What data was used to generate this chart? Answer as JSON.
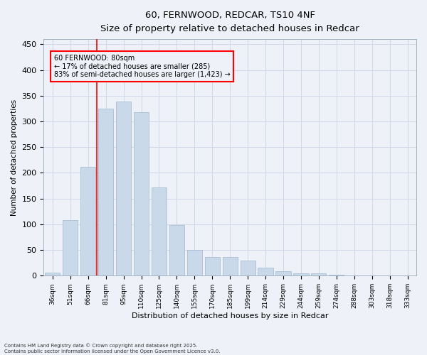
{
  "title_line1": "60, FERNWOOD, REDCAR, TS10 4NF",
  "title_line2": "Size of property relative to detached houses in Redcar",
  "xlabel": "Distribution of detached houses by size in Redcar",
  "ylabel": "Number of detached properties",
  "categories": [
    "36sqm",
    "51sqm",
    "66sqm",
    "81sqm",
    "95sqm",
    "110sqm",
    "125sqm",
    "140sqm",
    "155sqm",
    "170sqm",
    "185sqm",
    "199sqm",
    "214sqm",
    "229sqm",
    "244sqm",
    "259sqm",
    "274sqm",
    "288sqm",
    "303sqm",
    "318sqm",
    "333sqm"
  ],
  "values": [
    6,
    108,
    212,
    325,
    338,
    318,
    171,
    99,
    50,
    36,
    36,
    29,
    15,
    9,
    5,
    5,
    2,
    1,
    1,
    0,
    1
  ],
  "bar_color": "#c9d9ea",
  "bar_edge_color": "#a0b8d0",
  "grid_color": "#d0d8e8",
  "background_color": "#eef2f8",
  "annotation_line1": "60 FERNWOOD: 80sqm",
  "annotation_line2": "← 17% of detached houses are smaller (285)",
  "annotation_line3": "83% of semi-detached houses are larger (1,423) →",
  "vline_pos": 2.5,
  "footer_line1": "Contains HM Land Registry data © Crown copyright and database right 2025.",
  "footer_line2": "Contains public sector information licensed under the Open Government Licence v3.0.",
  "ylim": [
    0,
    460
  ],
  "yticks": [
    0,
    50,
    100,
    150,
    200,
    250,
    300,
    350,
    400,
    450
  ],
  "bar_width": 0.85,
  "fig_width": 6.0,
  "fig_height": 5.0,
  "dpi": 100
}
